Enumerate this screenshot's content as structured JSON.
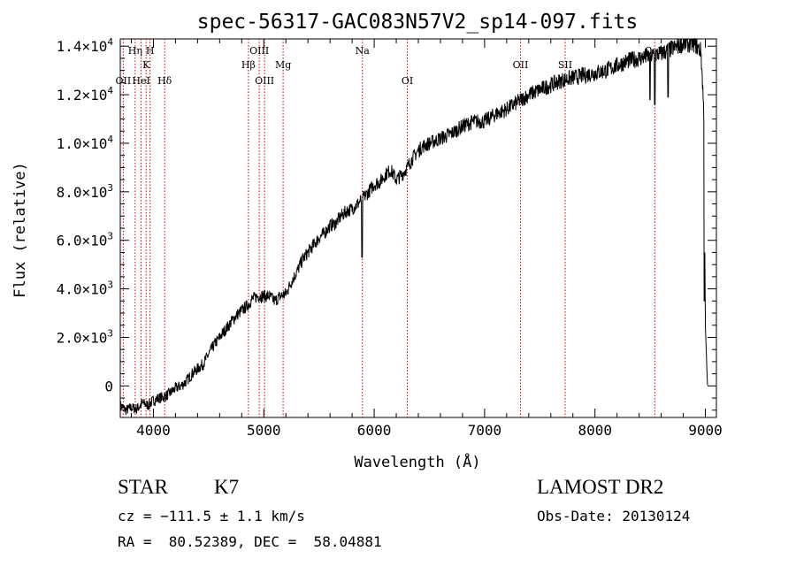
{
  "chart_data": {
    "type": "line",
    "title": "spec-56317-GAC083N57V2_sp14-097.fits",
    "xlabel": "Wavelength (Å)",
    "ylabel": "Flux (relative)",
    "xlim": [
      3700,
      9100
    ],
    "ylim": [
      -1300,
      14300
    ],
    "x_ticks": [
      {
        "value": 4000,
        "label": "4000"
      },
      {
        "value": 5000,
        "label": "5000"
      },
      {
        "value": 6000,
        "label": "6000"
      },
      {
        "value": 7000,
        "label": "7000"
      },
      {
        "value": 8000,
        "label": "8000"
      },
      {
        "value": 9000,
        "label": "9000"
      }
    ],
    "y_ticks": [
      {
        "value": 0,
        "mant": "0",
        "exp": ""
      },
      {
        "value": 2000,
        "mant": "2.0×10",
        "exp": "3"
      },
      {
        "value": 4000,
        "mant": "4.0×10",
        "exp": "3"
      },
      {
        "value": 6000,
        "mant": "6.0×10",
        "exp": "3"
      },
      {
        "value": 8000,
        "mant": "8.0×10",
        "exp": "3"
      },
      {
        "value": 10000,
        "mant": "1.0×10",
        "exp": "4"
      },
      {
        "value": 12000,
        "mant": "1.2×10",
        "exp": "4"
      },
      {
        "value": 14000,
        "mant": "1.4×10",
        "exp": "4"
      }
    ],
    "grid": false,
    "series_color": "#000000",
    "line_color": "#cc0000",
    "lines": [
      {
        "wavelength": 3727,
        "label": "OII",
        "row": 2
      },
      {
        "wavelength": 3835,
        "label": "Hη",
        "row": 0
      },
      {
        "wavelength": 3889,
        "label": "HeI",
        "row": 2
      },
      {
        "wavelength": 3934,
        "label": "K",
        "row": 1
      },
      {
        "wavelength": 3970,
        "label": "H",
        "row": 0
      },
      {
        "wavelength": 4102,
        "label": "Hδ",
        "row": 2
      },
      {
        "wavelength": 4861,
        "label": "Hβ",
        "row": 1
      },
      {
        "wavelength": 4959,
        "label": "OIII",
        "row": 0
      },
      {
        "wavelength": 5007,
        "label": "OIII",
        "row": 2
      },
      {
        "wavelength": 5175,
        "label": "Mg",
        "row": 1
      },
      {
        "wavelength": 5893,
        "label": "Na",
        "row": 0
      },
      {
        "wavelength": 6300,
        "label": "OI",
        "row": 2
      },
      {
        "wavelength": 7325,
        "label": "OII",
        "row": 1
      },
      {
        "wavelength": 7730,
        "label": "SII",
        "row": 1
      },
      {
        "wavelength": 8542,
        "label": "CaII",
        "row": 0
      }
    ],
    "flux_points": [
      [
        3700,
        -800
      ],
      [
        3750,
        -1000
      ],
      [
        3800,
        -900
      ],
      [
        3850,
        -950
      ],
      [
        3900,
        -700
      ],
      [
        3950,
        -800
      ],
      [
        4000,
        -600
      ],
      [
        4050,
        -500
      ],
      [
        4100,
        -450
      ],
      [
        4150,
        -300
      ],
      [
        4200,
        -100
      ],
      [
        4250,
        0
      ],
      [
        4300,
        200
      ],
      [
        4350,
        500
      ],
      [
        4400,
        700
      ],
      [
        4450,
        900
      ],
      [
        4500,
        1300
      ],
      [
        4550,
        1700
      ],
      [
        4600,
        2000
      ],
      [
        4650,
        2300
      ],
      [
        4700,
        2600
      ],
      [
        4750,
        2900
      ],
      [
        4800,
        3100
      ],
      [
        4850,
        3300
      ],
      [
        4900,
        3600
      ],
      [
        4950,
        3700
      ],
      [
        5000,
        3700
      ],
      [
        5050,
        3700
      ],
      [
        5100,
        3500
      ],
      [
        5150,
        3700
      ],
      [
        5200,
        3800
      ],
      [
        5250,
        4300
      ],
      [
        5300,
        4700
      ],
      [
        5350,
        5200
      ],
      [
        5400,
        5500
      ],
      [
        5450,
        5800
      ],
      [
        5500,
        6100
      ],
      [
        5550,
        6300
      ],
      [
        5600,
        6600
      ],
      [
        5650,
        6700
      ],
      [
        5700,
        7000
      ],
      [
        5750,
        7200
      ],
      [
        5800,
        7300
      ],
      [
        5850,
        7500
      ],
      [
        5890,
        7700
      ],
      [
        5950,
        8000
      ],
      [
        6000,
        8300
      ],
      [
        6050,
        8400
      ],
      [
        6100,
        8700
      ],
      [
        6150,
        8900
      ],
      [
        6200,
        8500
      ],
      [
        6250,
        8700
      ],
      [
        6300,
        9000
      ],
      [
        6350,
        9400
      ],
      [
        6400,
        9700
      ],
      [
        6450,
        9900
      ],
      [
        6500,
        10000
      ],
      [
        6600,
        10200
      ],
      [
        6700,
        10400
      ],
      [
        6800,
        10700
      ],
      [
        6900,
        10900
      ],
      [
        7000,
        10900
      ],
      [
        7100,
        11200
      ],
      [
        7200,
        11400
      ],
      [
        7300,
        11700
      ],
      [
        7400,
        12000
      ],
      [
        7500,
        12200
      ],
      [
        7600,
        12400
      ],
      [
        7700,
        12600
      ],
      [
        7800,
        12700
      ],
      [
        7900,
        12800
      ],
      [
        8000,
        12900
      ],
      [
        8100,
        13000
      ],
      [
        8200,
        13200
      ],
      [
        8300,
        13400
      ],
      [
        8400,
        13500
      ],
      [
        8500,
        13600
      ],
      [
        8600,
        13700
      ],
      [
        8700,
        13900
      ],
      [
        8800,
        14100
      ],
      [
        8900,
        14100
      ],
      [
        8960,
        13800
      ],
      [
        8985,
        11500
      ],
      [
        9000,
        2500
      ],
      [
        9020,
        -100
      ]
    ],
    "dips": [
      [
        5890,
        5300
      ],
      [
        8498,
        11800
      ],
      [
        8542,
        11600
      ],
      [
        8662,
        11900
      ],
      [
        8990,
        3500
      ]
    ]
  },
  "info": {
    "object_class": "STAR",
    "subclass": "K7",
    "survey": "LAMOST DR2",
    "cz": "cz = −111.5 ± 1.1 km/s",
    "obs_date": "Obs-Date: 20130124",
    "coords": "RA =  80.52389, DEC =  58.04881"
  }
}
